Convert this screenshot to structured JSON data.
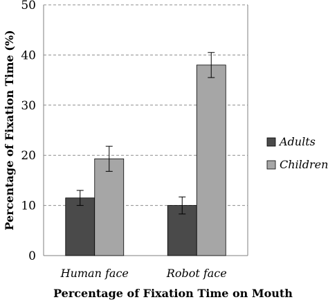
{
  "chart_data": {
    "type": "bar",
    "title": "",
    "xlabel": "Percentage of Fixation Time on Mouth",
    "ylabel": "Percentage of Fixation Time (%)",
    "ylim": [
      0,
      50
    ],
    "yticks": [
      "0",
      "10",
      "20",
      "30",
      "40",
      "50"
    ],
    "grid": "horizontal dashed",
    "legend_position": "right",
    "categories": [
      "Human face",
      "Robot face"
    ],
    "series": [
      {
        "name": "Adults",
        "color": "#4a4a4a",
        "values": [
          11.5,
          10.0
        ],
        "errors": [
          1.5,
          1.7
        ]
      },
      {
        "name": "Children",
        "color": "#a6a6a6",
        "values": [
          19.3,
          38.0
        ],
        "errors": [
          2.5,
          2.5
        ]
      }
    ]
  }
}
